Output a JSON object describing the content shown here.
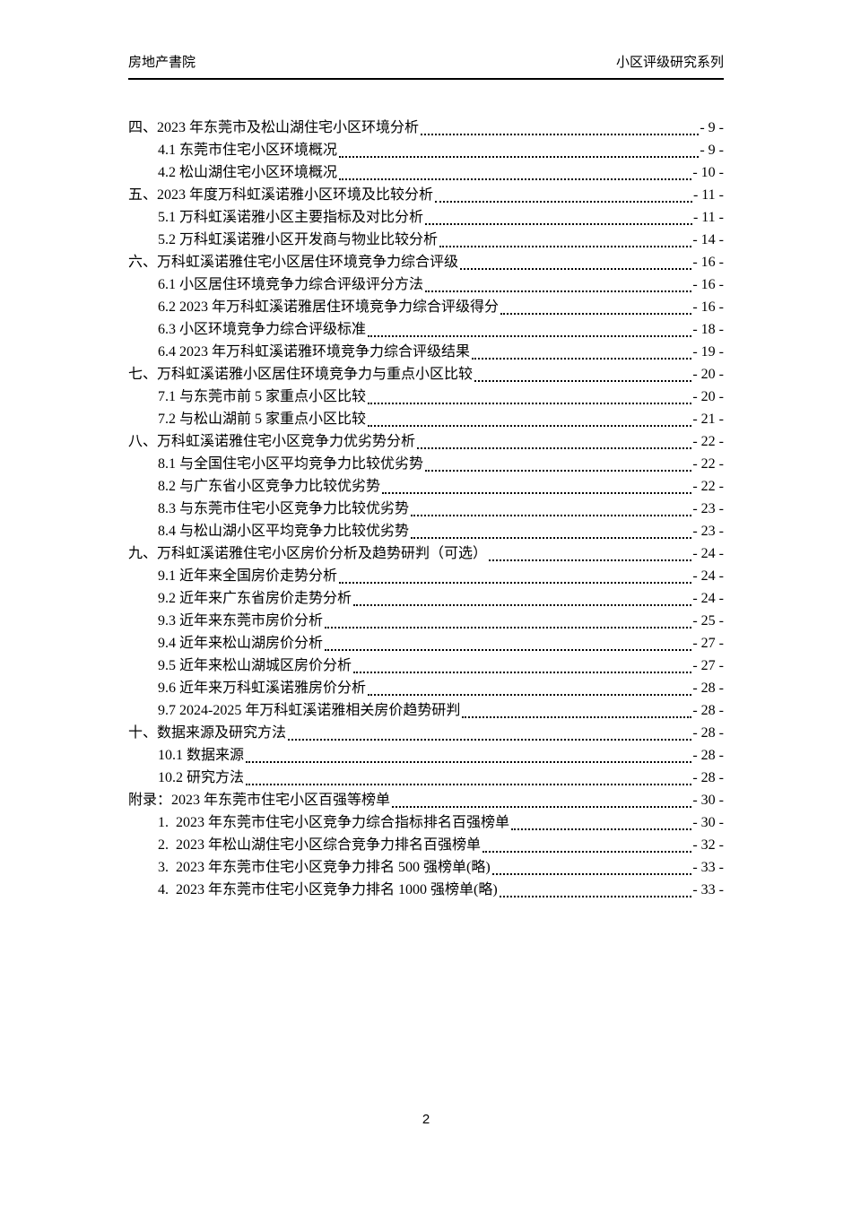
{
  "header": {
    "left": "房地产書院",
    "right": "小区评级研究系列"
  },
  "footer": {
    "page_number": "2"
  },
  "toc": {
    "entries": [
      {
        "level": 1,
        "label": "四、2023 年东莞市及松山湖住宅小区环境分析",
        "page": "- 9 -"
      },
      {
        "level": 2,
        "label": "4.1 东莞市住宅小区环境概况",
        "page": "- 9 -"
      },
      {
        "level": 2,
        "label": "4.2 松山湖住宅小区环境概况",
        "page": "- 10 -"
      },
      {
        "level": 1,
        "label": "五、2023 年度万科虹溪诺雅小区环境及比较分析",
        "page": "- 11 -"
      },
      {
        "level": 2,
        "label": "5.1 万科虹溪诺雅小区主要指标及对比分析",
        "page": "- 11 -"
      },
      {
        "level": 2,
        "label": "5.2 万科虹溪诺雅小区开发商与物业比较分析",
        "page": "- 14 -"
      },
      {
        "level": 1,
        "label": "六、万科虹溪诺雅住宅小区居住环境竞争力综合评级",
        "page": "- 16 -"
      },
      {
        "level": 2,
        "label": "6.1 小区居住环境竞争力综合评级评分方法",
        "page": "- 16 -"
      },
      {
        "level": 2,
        "label": "6.2 2023 年万科虹溪诺雅居住环境竞争力综合评级得分",
        "page": "- 16 -"
      },
      {
        "level": 2,
        "label": "6.3 小区环境竞争力综合评级标准",
        "page": "- 18 -"
      },
      {
        "level": 2,
        "label": "6.4 2023 年万科虹溪诺雅环境竞争力综合评级结果",
        "page": "- 19 -"
      },
      {
        "level": 1,
        "label": "七、万科虹溪诺雅小区居住环境竞争力与重点小区比较",
        "page": "- 20 -"
      },
      {
        "level": 2,
        "label": "7.1 与东莞市前 5 家重点小区比较",
        "page": "- 20 -"
      },
      {
        "level": 2,
        "label": "7.2 与松山湖前 5 家重点小区比较",
        "page": "- 21 -"
      },
      {
        "level": 1,
        "label": "八、万科虹溪诺雅住宅小区竞争力优劣势分析",
        "page": "- 22 -"
      },
      {
        "level": 2,
        "label": "8.1 与全国住宅小区平均竞争力比较优劣势",
        "page": "- 22 -"
      },
      {
        "level": 2,
        "label": "8.2 与广东省小区竞争力比较优劣势",
        "page": "- 22 -"
      },
      {
        "level": 2,
        "label": "8.3 与东莞市住宅小区竞争力比较优劣势",
        "page": "- 23 -"
      },
      {
        "level": 2,
        "label": "8.4 与松山湖小区平均竞争力比较优劣势",
        "page": "- 23 -"
      },
      {
        "level": 1,
        "label": "九、万科虹溪诺雅住宅小区房价分析及趋势研判（可选）",
        "page": "- 24 -"
      },
      {
        "level": 2,
        "label": "9.1 近年来全国房价走势分析",
        "page": "- 24 -"
      },
      {
        "level": 2,
        "label": "9.2 近年来广东省房价走势分析",
        "page": "- 24 -"
      },
      {
        "level": 2,
        "label": "9.3 近年来东莞市房价分析",
        "page": "- 25 -"
      },
      {
        "level": 2,
        "label": "9.4 近年来松山湖房价分析",
        "page": "- 27 -"
      },
      {
        "level": 2,
        "label": "9.5 近年来松山湖城区房价分析",
        "page": "- 27 -"
      },
      {
        "level": 2,
        "label": "9.6 近年来万科虹溪诺雅房价分析",
        "page": "- 28 -"
      },
      {
        "level": 2,
        "label": "9.7 2024-2025 年万科虹溪诺雅相关房价趋势研判",
        "page": "- 28 -"
      },
      {
        "level": 1,
        "label": "十、数据来源及研究方法",
        "page": "- 28 -"
      },
      {
        "level": 2,
        "label": "10.1 数据来源",
        "page": "- 28 -"
      },
      {
        "level": 2,
        "label": "10.2 研究方法",
        "page": "- 28 -"
      },
      {
        "level": 1,
        "label": "附录：2023 年东莞市住宅小区百强等榜单",
        "page": "- 30 -"
      },
      {
        "level": 2,
        "label": "1.  2023 年东莞市住宅小区竞争力综合指标排名百强榜单",
        "page": "- 30 -"
      },
      {
        "level": 2,
        "label": "2.  2023 年松山湖住宅小区综合竞争力排名百强榜单",
        "page": "- 32 -"
      },
      {
        "level": 2,
        "label": "3.  2023 年东莞市住宅小区竞争力排名 500 强榜单(略)",
        "page": "- 33 -"
      },
      {
        "level": 2,
        "label": "4.  2023 年东莞市住宅小区竞争力排名 1000 强榜单(略)",
        "page": "- 33 -"
      }
    ]
  }
}
